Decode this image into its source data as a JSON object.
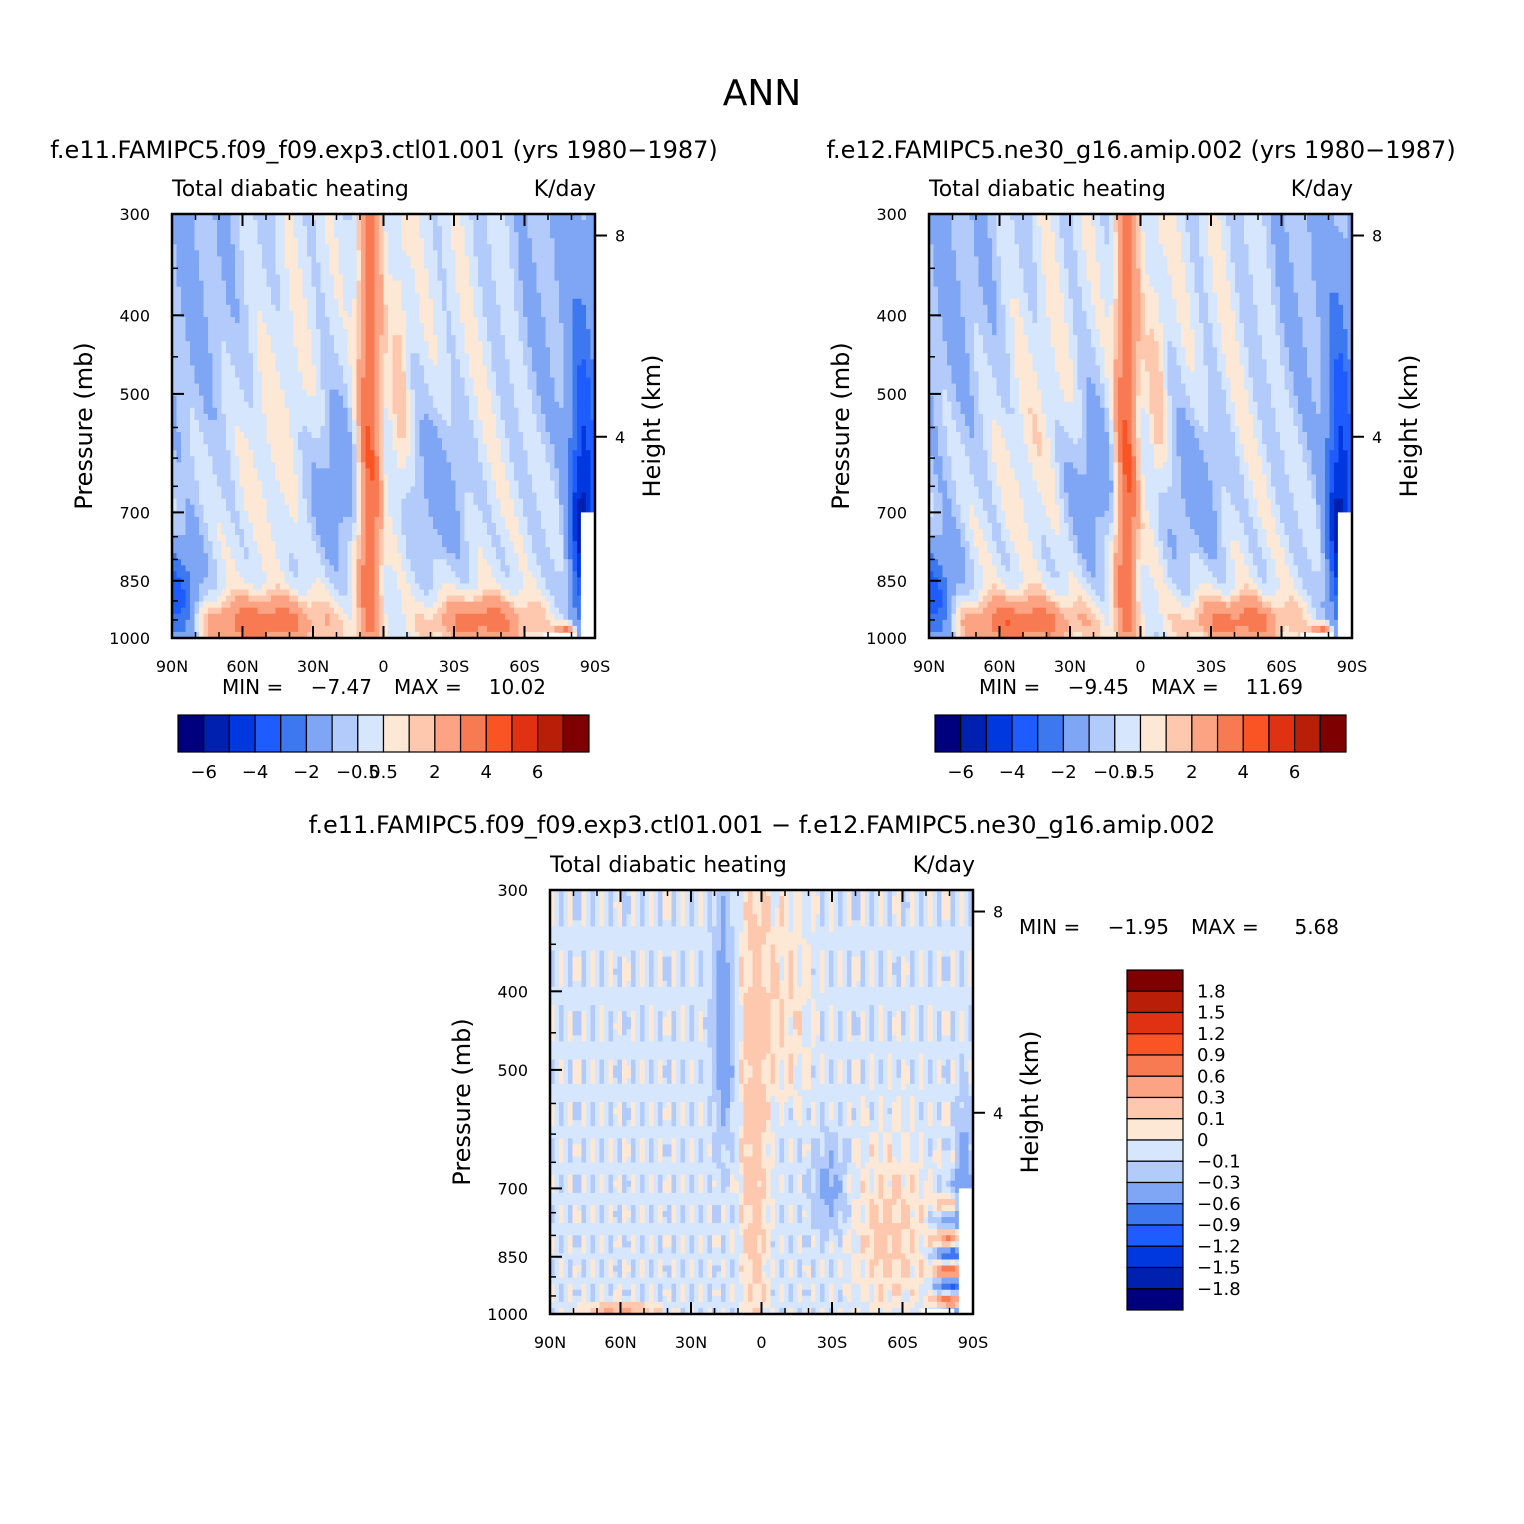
{
  "figure": {
    "title": "ANN"
  },
  "colors": {
    "contour_palette": [
      "#00007f",
      "#0020b0",
      "#0038e0",
      "#1e5cff",
      "#3d78f0",
      "#7fa6f4",
      "#b3cbfa",
      "#d6e6fc",
      "#fde8d6",
      "#fdc8ae",
      "#fba382",
      "#f87a52",
      "#fa5424",
      "#e03212",
      "#b81e08",
      "#7e0000"
    ],
    "line": "#000000",
    "background": "#ffffff"
  },
  "chart_data": [
    {
      "type": "heatmap",
      "title": "f.e11.FAMIPC5.f09_f09.exp3.ctl01.001 (yrs 1980−1987)",
      "subtitle_left": "Total diabatic heating",
      "subtitle_right": "K/day",
      "ylabel": "Pressure (mb)",
      "ylabel_right": "Height (km)",
      "y_ticks": [
        300,
        400,
        500,
        700,
        850,
        1000
      ],
      "y_right_ticks": [
        8,
        4
      ],
      "ylim": [
        300,
        1000
      ],
      "x_tick_labels": [
        "90N",
        "60N",
        "30N",
        "0",
        "30S",
        "60S",
        "90S"
      ],
      "xlim": [
        90,
        -90
      ],
      "min_label": "MIN = ",
      "min_value": "−7.47",
      "max_label": "MAX = ",
      "max_value": "10.02",
      "colorbar_levels": [
        -6,
        -5,
        -4,
        -3,
        -2,
        -1,
        -0.5,
        0,
        0.5,
        1,
        2,
        3,
        4,
        5,
        6
      ],
      "colorbar_tick_labels": [
        "−6",
        "−4",
        "−2",
        "−0.5",
        "0.5",
        "2",
        "4",
        "6"
      ]
    },
    {
      "type": "heatmap",
      "title": "f.e12.FAMIPC5.ne30_g16.amip.002 (yrs 1980−1987)",
      "subtitle_left": "Total diabatic heating",
      "subtitle_right": "K/day",
      "ylabel": "Pressure (mb)",
      "ylabel_right": "Height (km)",
      "y_ticks": [
        300,
        400,
        500,
        700,
        850,
        1000
      ],
      "y_right_ticks": [
        8,
        4
      ],
      "ylim": [
        300,
        1000
      ],
      "x_tick_labels": [
        "90N",
        "60N",
        "30N",
        "0",
        "30S",
        "60S",
        "90S"
      ],
      "xlim": [
        90,
        -90
      ],
      "min_label": "MIN = ",
      "min_value": "−9.45",
      "max_label": "MAX = ",
      "max_value": "11.69",
      "colorbar_levels": [
        -6,
        -5,
        -4,
        -3,
        -2,
        -1,
        -0.5,
        0,
        0.5,
        1,
        2,
        3,
        4,
        5,
        6
      ],
      "colorbar_tick_labels": [
        "−6",
        "−4",
        "−2",
        "−0.5",
        "0.5",
        "2",
        "4",
        "6"
      ]
    },
    {
      "type": "heatmap",
      "title": "f.e11.FAMIPC5.f09_f09.exp3.ctl01.001 − f.e12.FAMIPC5.ne30_g16.amip.002",
      "subtitle_left": "Total diabatic heating",
      "subtitle_right": "K/day",
      "ylabel": "Pressure (mb)",
      "ylabel_right": "Height (km)",
      "y_ticks": [
        300,
        400,
        500,
        700,
        850,
        1000
      ],
      "y_right_ticks": [
        8,
        4
      ],
      "ylim": [
        300,
        1000
      ],
      "x_tick_labels": [
        "90N",
        "60N",
        "30N",
        "0",
        "30S",
        "60S",
        "90S"
      ],
      "xlim": [
        90,
        -90
      ],
      "min_label": "MIN = ",
      "min_value": "−1.95",
      "max_label": "MAX = ",
      "max_value": "5.68",
      "colorbar_levels": [
        1.8,
        1.5,
        1.2,
        0.9,
        0.6,
        0.3,
        0.1,
        0,
        -0.1,
        -0.3,
        -0.6,
        -0.9,
        -1.2,
        -1.5,
        -1.8
      ],
      "colorbar_tick_labels": [
        "1.8",
        "1.5",
        "1.2",
        "0.9",
        "0.6",
        "0.3",
        "0.1",
        "0",
        "−0.1",
        "−0.3",
        "−0.6",
        "−0.9",
        "−1.2",
        "−1.5",
        "−1.8"
      ]
    }
  ]
}
